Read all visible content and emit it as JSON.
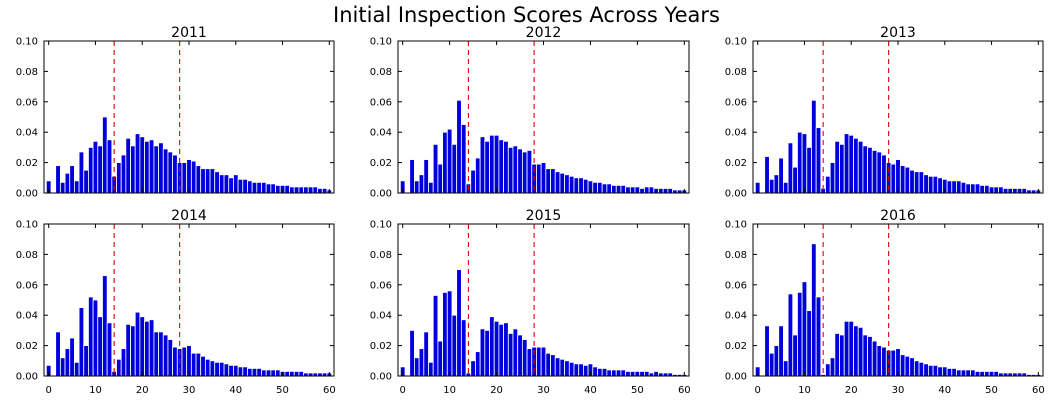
{
  "title": "Initial Inspection Scores Across Years",
  "colors": {
    "bar": "#0000dd",
    "bar_edge": "#ffffff",
    "threshold": "#dd0000",
    "axis": "#000000"
  },
  "chart_data": [
    {
      "type": "bar",
      "title": "2011",
      "xlim": [
        -1,
        61
      ],
      "ylim": [
        0,
        0.1
      ],
      "xticks": [
        0,
        10,
        20,
        30,
        40,
        50,
        60
      ],
      "yticks": [
        "0.00",
        "0.02",
        "0.04",
        "0.06",
        "0.08",
        "0.10"
      ],
      "x_tick_labels_visible": false,
      "threshold_lines": [
        14,
        28
      ],
      "grid": false,
      "x": [
        0,
        1,
        2,
        3,
        4,
        5,
        6,
        7,
        8,
        9,
        10,
        11,
        12,
        13,
        14,
        15,
        16,
        17,
        18,
        19,
        20,
        21,
        22,
        23,
        24,
        25,
        26,
        27,
        28,
        29,
        30,
        31,
        32,
        33,
        34,
        35,
        36,
        37,
        38,
        39,
        40,
        41,
        42,
        43,
        44,
        45,
        46,
        47,
        48,
        49,
        50,
        51,
        52,
        53,
        54,
        55,
        56,
        57,
        58,
        59,
        60
      ],
      "values": [
        0.008,
        0,
        0.018,
        0.007,
        0.013,
        0.018,
        0.008,
        0.027,
        0.015,
        0.03,
        0.034,
        0.031,
        0.05,
        0.035,
        0.011,
        0.02,
        0.025,
        0.036,
        0.031,
        0.039,
        0.037,
        0.034,
        0.035,
        0.031,
        0.033,
        0.029,
        0.027,
        0.025,
        0.02,
        0.02,
        0.022,
        0.021,
        0.018,
        0.016,
        0.016,
        0.016,
        0.014,
        0.012,
        0.012,
        0.01,
        0.012,
        0.009,
        0.009,
        0.008,
        0.007,
        0.007,
        0.007,
        0.006,
        0.006,
        0.005,
        0.005,
        0.005,
        0.004,
        0.004,
        0.004,
        0.004,
        0.004,
        0.004,
        0.003,
        0.003,
        0.002
      ]
    },
    {
      "type": "bar",
      "title": "2012",
      "xlim": [
        -1,
        61
      ],
      "ylim": [
        0,
        0.1
      ],
      "xticks": [
        0,
        10,
        20,
        30,
        40,
        50,
        60
      ],
      "yticks": [
        "0.00",
        "0.02",
        "0.04",
        "0.06",
        "0.08",
        "0.10"
      ],
      "x_tick_labels_visible": false,
      "threshold_lines": [
        14,
        28
      ],
      "grid": false,
      "x": [
        0,
        1,
        2,
        3,
        4,
        5,
        6,
        7,
        8,
        9,
        10,
        11,
        12,
        13,
        14,
        15,
        16,
        17,
        18,
        19,
        20,
        21,
        22,
        23,
        24,
        25,
        26,
        27,
        28,
        29,
        30,
        31,
        32,
        33,
        34,
        35,
        36,
        37,
        38,
        39,
        40,
        41,
        42,
        43,
        44,
        45,
        46,
        47,
        48,
        49,
        50,
        51,
        52,
        53,
        54,
        55,
        56,
        57,
        58,
        59,
        60
      ],
      "values": [
        0.008,
        0,
        0.022,
        0.008,
        0.012,
        0.022,
        0.007,
        0.032,
        0.019,
        0.04,
        0.042,
        0.032,
        0.061,
        0.045,
        0.006,
        0.015,
        0.023,
        0.037,
        0.034,
        0.038,
        0.038,
        0.035,
        0.034,
        0.03,
        0.031,
        0.029,
        0.027,
        0.028,
        0.019,
        0.019,
        0.02,
        0.016,
        0.016,
        0.014,
        0.013,
        0.012,
        0.011,
        0.01,
        0.01,
        0.009,
        0.008,
        0.007,
        0.007,
        0.006,
        0.006,
        0.005,
        0.005,
        0.005,
        0.004,
        0.004,
        0.004,
        0.003,
        0.004,
        0.004,
        0.003,
        0.003,
        0.003,
        0.003,
        0.002,
        0.002,
        0.002
      ]
    },
    {
      "type": "bar",
      "title": "2013",
      "xlim": [
        -1,
        61
      ],
      "ylim": [
        0,
        0.1
      ],
      "xticks": [
        0,
        10,
        20,
        30,
        40,
        50,
        60
      ],
      "yticks": [
        "0.00",
        "0.02",
        "0.04",
        "0.06",
        "0.08",
        "0.10"
      ],
      "x_tick_labels_visible": false,
      "threshold_lines": [
        14,
        28
      ],
      "grid": false,
      "x": [
        0,
        1,
        2,
        3,
        4,
        5,
        6,
        7,
        8,
        9,
        10,
        11,
        12,
        13,
        14,
        15,
        16,
        17,
        18,
        19,
        20,
        21,
        22,
        23,
        24,
        25,
        26,
        27,
        28,
        29,
        30,
        31,
        32,
        33,
        34,
        35,
        36,
        37,
        38,
        39,
        40,
        41,
        42,
        43,
        44,
        45,
        46,
        47,
        48,
        49,
        50,
        51,
        52,
        53,
        54,
        55,
        56,
        57,
        58,
        59,
        60
      ],
      "values": [
        0.007,
        0,
        0.024,
        0.009,
        0.012,
        0.023,
        0.007,
        0.033,
        0.017,
        0.04,
        0.039,
        0.03,
        0.061,
        0.043,
        0.003,
        0.011,
        0.02,
        0.034,
        0.032,
        0.039,
        0.038,
        0.036,
        0.034,
        0.031,
        0.03,
        0.028,
        0.027,
        0.025,
        0.02,
        0.019,
        0.022,
        0.018,
        0.017,
        0.015,
        0.014,
        0.014,
        0.012,
        0.011,
        0.011,
        0.01,
        0.009,
        0.008,
        0.008,
        0.008,
        0.007,
        0.006,
        0.006,
        0.006,
        0.005,
        0.005,
        0.004,
        0.004,
        0.004,
        0.003,
        0.003,
        0.003,
        0.003,
        0.003,
        0.002,
        0.002,
        0.002
      ]
    },
    {
      "type": "bar",
      "title": "2014",
      "xlim": [
        -1,
        61
      ],
      "ylim": [
        0,
        0.1
      ],
      "xticks": [
        0,
        10,
        20,
        30,
        40,
        50,
        60
      ],
      "yticks": [
        "0.00",
        "0.02",
        "0.04",
        "0.06",
        "0.08",
        "0.10"
      ],
      "x_tick_labels": [
        "0",
        "10",
        "20",
        "30",
        "40",
        "50",
        "60"
      ],
      "x_tick_labels_visible": true,
      "threshold_lines": [
        14,
        28
      ],
      "grid": false,
      "x": [
        0,
        1,
        2,
        3,
        4,
        5,
        6,
        7,
        8,
        9,
        10,
        11,
        12,
        13,
        14,
        15,
        16,
        17,
        18,
        19,
        20,
        21,
        22,
        23,
        24,
        25,
        26,
        27,
        28,
        29,
        30,
        31,
        32,
        33,
        34,
        35,
        36,
        37,
        38,
        39,
        40,
        41,
        42,
        43,
        44,
        45,
        46,
        47,
        48,
        49,
        50,
        51,
        52,
        53,
        54,
        55,
        56,
        57,
        58,
        59,
        60
      ],
      "values": [
        0.007,
        0,
        0.029,
        0.012,
        0.018,
        0.025,
        0.009,
        0.045,
        0.02,
        0.052,
        0.05,
        0.039,
        0.066,
        0.035,
        0.003,
        0.011,
        0.018,
        0.034,
        0.033,
        0.042,
        0.039,
        0.036,
        0.037,
        0.029,
        0.029,
        0.027,
        0.024,
        0.019,
        0.018,
        0.019,
        0.02,
        0.015,
        0.015,
        0.013,
        0.011,
        0.01,
        0.009,
        0.009,
        0.008,
        0.007,
        0.007,
        0.006,
        0.006,
        0.005,
        0.005,
        0.005,
        0.004,
        0.004,
        0.004,
        0.004,
        0.003,
        0.003,
        0.003,
        0.003,
        0.003,
        0.002,
        0.002,
        0.002,
        0.002,
        0.002,
        0.002
      ]
    },
    {
      "type": "bar",
      "title": "2015",
      "xlim": [
        -1,
        61
      ],
      "ylim": [
        0,
        0.1
      ],
      "xticks": [
        0,
        10,
        20,
        30,
        40,
        50,
        60
      ],
      "yticks": [
        "0.00",
        "0.02",
        "0.04",
        "0.06",
        "0.08",
        "0.10"
      ],
      "x_tick_labels": [
        "0",
        "10",
        "20",
        "30",
        "40",
        "50",
        "60"
      ],
      "x_tick_labels_visible": true,
      "threshold_lines": [
        14,
        28
      ],
      "grid": false,
      "x": [
        0,
        1,
        2,
        3,
        4,
        5,
        6,
        7,
        8,
        9,
        10,
        11,
        12,
        13,
        14,
        15,
        16,
        17,
        18,
        19,
        20,
        21,
        22,
        23,
        24,
        25,
        26,
        27,
        28,
        29,
        30,
        31,
        32,
        33,
        34,
        35,
        36,
        37,
        38,
        39,
        40,
        41,
        42,
        43,
        44,
        45,
        46,
        47,
        48,
        49,
        50,
        51,
        52,
        53,
        54,
        55,
        56,
        57,
        58,
        59,
        60
      ],
      "values": [
        0.006,
        0,
        0.03,
        0.012,
        0.018,
        0.029,
        0.009,
        0.053,
        0.023,
        0.055,
        0.056,
        0.04,
        0.07,
        0.037,
        0.002,
        0.01,
        0.016,
        0.031,
        0.03,
        0.039,
        0.036,
        0.034,
        0.035,
        0.028,
        0.031,
        0.027,
        0.024,
        0.018,
        0.019,
        0.019,
        0.019,
        0.015,
        0.014,
        0.012,
        0.011,
        0.01,
        0.009,
        0.008,
        0.008,
        0.007,
        0.008,
        0.006,
        0.005,
        0.005,
        0.004,
        0.004,
        0.004,
        0.004,
        0.003,
        0.003,
        0.003,
        0.003,
        0.003,
        0.002,
        0.003,
        0.002,
        0.002,
        0.002,
        0.001,
        0.001,
        0.001
      ]
    },
    {
      "type": "bar",
      "title": "2016",
      "xlim": [
        -1,
        61
      ],
      "ylim": [
        0,
        0.1
      ],
      "xticks": [
        0,
        10,
        20,
        30,
        40,
        50,
        60
      ],
      "yticks": [
        "0.00",
        "0.02",
        "0.04",
        "0.06",
        "0.08",
        "0.10"
      ],
      "x_tick_labels": [
        "0",
        "10",
        "20",
        "30",
        "40",
        "50",
        "60"
      ],
      "x_tick_labels_visible": true,
      "threshold_lines": [
        14,
        28
      ],
      "grid": false,
      "x": [
        0,
        1,
        2,
        3,
        4,
        5,
        6,
        7,
        8,
        9,
        10,
        11,
        12,
        13,
        14,
        15,
        16,
        17,
        18,
        19,
        20,
        21,
        22,
        23,
        24,
        25,
        26,
        27,
        28,
        29,
        30,
        31,
        32,
        33,
        34,
        35,
        36,
        37,
        38,
        39,
        40,
        41,
        42,
        43,
        44,
        45,
        46,
        47,
        48,
        49,
        50,
        51,
        52,
        53,
        54,
        55,
        56,
        57,
        58,
        59,
        60
      ],
      "values": [
        0.006,
        0,
        0.033,
        0.015,
        0.02,
        0.033,
        0.01,
        0.054,
        0.027,
        0.055,
        0.062,
        0.043,
        0.087,
        0.052,
        0.001,
        0.008,
        0.012,
        0.028,
        0.027,
        0.036,
        0.036,
        0.033,
        0.032,
        0.027,
        0.026,
        0.023,
        0.02,
        0.019,
        0.017,
        0.017,
        0.018,
        0.014,
        0.013,
        0.012,
        0.01,
        0.009,
        0.008,
        0.007,
        0.007,
        0.006,
        0.006,
        0.005,
        0.005,
        0.004,
        0.004,
        0.004,
        0.004,
        0.003,
        0.003,
        0.003,
        0.003,
        0.003,
        0.002,
        0.002,
        0.002,
        0.002,
        0.002,
        0.002,
        0.001,
        0.001,
        0.001
      ]
    }
  ]
}
